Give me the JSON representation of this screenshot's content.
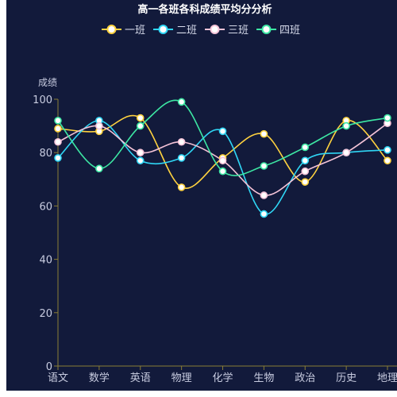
{
  "chart_data": {
    "type": "line",
    "title": "高一各班各科成绩平均分分析",
    "ylabel": "成绩",
    "xlabel": "",
    "categories": [
      "语文",
      "数学",
      "英语",
      "物理",
      "化学",
      "生物",
      "政治",
      "历史",
      "地理"
    ],
    "ylim": [
      0,
      100
    ],
    "yticks": [
      0,
      20,
      40,
      60,
      80,
      100
    ],
    "grid": false,
    "smooth": true,
    "legend_position": "top-center",
    "series": [
      {
        "name": "一班",
        "color": "#ffd23f",
        "values": [
          89,
          88,
          93,
          67,
          78,
          87,
          69,
          92,
          77
        ]
      },
      {
        "name": "二班",
        "color": "#2fd6f5",
        "values": [
          78,
          92,
          77,
          78,
          88,
          57,
          77,
          80,
          81
        ]
      },
      {
        "name": "三班",
        "color": "#f5c4d8",
        "values": [
          84,
          90,
          80,
          84,
          77,
          64,
          73,
          80,
          91
        ]
      },
      {
        "name": "四班",
        "color": "#3de8a4",
        "values": [
          92,
          74,
          90,
          99,
          73,
          75,
          82,
          90,
          93
        ]
      }
    ],
    "colors": {
      "background": "#121a3b",
      "axis_line": "#8a7d36",
      "axis_text": "#c8cce0",
      "marker_fill": "#ffffff"
    }
  }
}
